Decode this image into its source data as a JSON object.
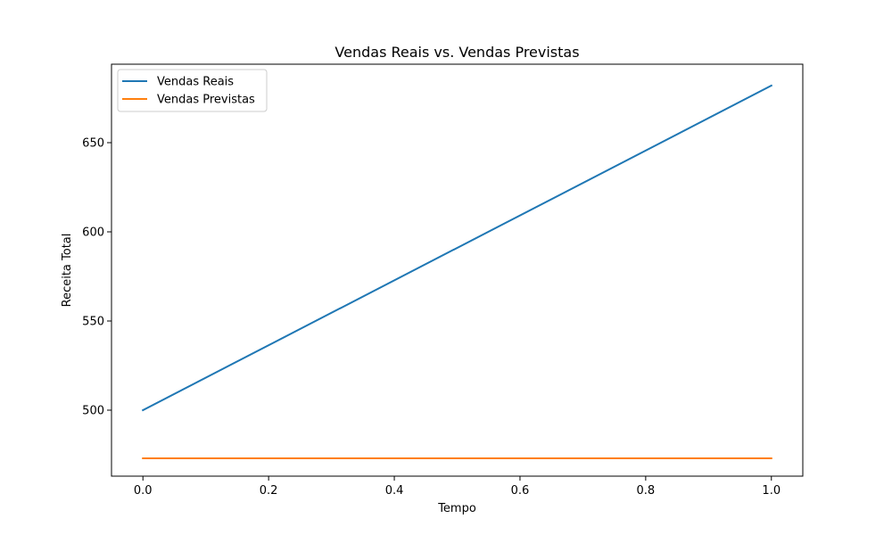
{
  "chart_data": {
    "type": "line",
    "title": "Vendas Reais vs. Vendas Previstas",
    "xlabel": "Tempo",
    "ylabel": "Receita Total",
    "xlim": [
      -0.05,
      1.05
    ],
    "ylim": [
      463,
      694
    ],
    "xticks": [
      0.0,
      0.2,
      0.4,
      0.6,
      0.8,
      1.0
    ],
    "xtick_labels": [
      "0.0",
      "0.2",
      "0.4",
      "0.6",
      "0.8",
      "1.0"
    ],
    "yticks": [
      500,
      550,
      600,
      650
    ],
    "ytick_labels": [
      "500",
      "550",
      "600",
      "650"
    ],
    "grid": false,
    "legend_position": "top-left",
    "series": [
      {
        "name": "Vendas Reais",
        "color": "#1f77b4",
        "x": [
          0.0,
          1.0
        ],
        "y": [
          500,
          682
        ]
      },
      {
        "name": "Vendas Previstas",
        "color": "#ff7f0e",
        "x": [
          0.0,
          1.0
        ],
        "y": [
          473,
          473
        ]
      }
    ]
  }
}
